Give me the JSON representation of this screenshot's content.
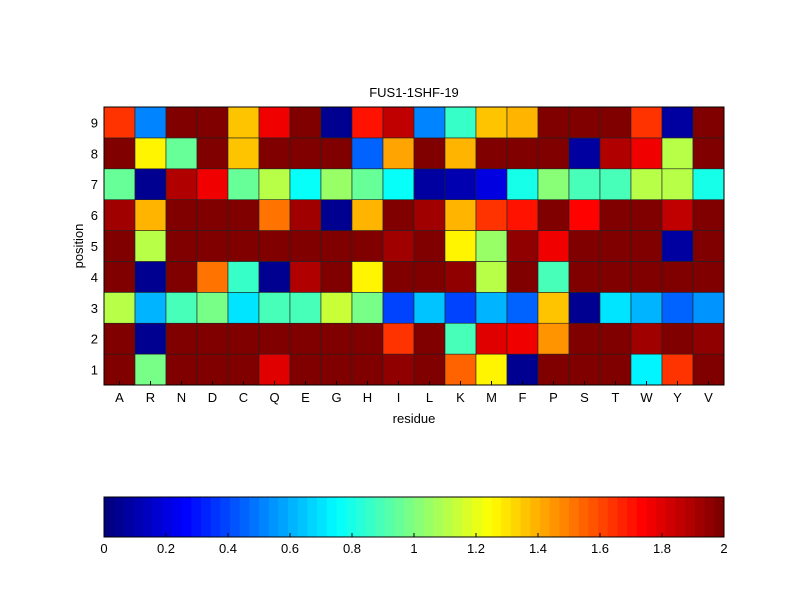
{
  "chart_data": {
    "type": "heatmap",
    "title": "FUS1-1SHF-19",
    "xlabel": "residue",
    "ylabel": "position",
    "x": [
      "A",
      "R",
      "N",
      "D",
      "C",
      "Q",
      "E",
      "G",
      "H",
      "I",
      "L",
      "K",
      "M",
      "F",
      "P",
      "S",
      "T",
      "W",
      "Y",
      "V"
    ],
    "y": [
      "1",
      "2",
      "3",
      "4",
      "5",
      "6",
      "7",
      "8",
      "9"
    ],
    "values": [
      [
        2,
        0.98,
        2,
        2,
        2,
        1.8,
        2,
        2,
        2,
        1.95,
        2,
        1.55,
        1.28,
        0.05,
        2,
        2,
        2,
        0.72,
        1.65,
        2
      ],
      [
        2,
        0.05,
        2,
        2,
        2,
        2,
        2,
        2,
        2,
        1.65,
        2,
        0.88,
        1.8,
        1.75,
        1.45,
        2,
        2,
        1.92,
        2,
        1.95
      ],
      [
        1.1,
        0.6,
        0.88,
        0.98,
        0.7,
        0.88,
        0.9,
        1.15,
        0.98,
        0.4,
        0.65,
        0.4,
        0.62,
        0.45,
        1.35,
        0.05,
        0.7,
        0.6,
        0.45,
        0.55
      ],
      [
        2,
        0.05,
        2,
        1.5,
        0.85,
        0.05,
        1.9,
        2,
        1.25,
        2,
        2,
        1.95,
        1.1,
        2,
        0.9,
        2,
        2,
        2,
        2,
        2
      ],
      [
        2,
        1.1,
        2,
        2,
        2,
        2,
        2,
        2,
        2,
        1.92,
        2,
        1.25,
        1.05,
        1.95,
        1.75,
        2,
        2,
        2,
        0.08,
        2
      ],
      [
        1.92,
        1.4,
        2,
        2,
        2,
        1.5,
        1.92,
        0.05,
        1.38,
        2,
        1.92,
        1.4,
        1.65,
        1.7,
        2,
        1.72,
        2,
        2,
        1.85,
        2
      ],
      [
        0.95,
        0.05,
        1.9,
        1.78,
        0.95,
        1.1,
        0.75,
        1.05,
        0.95,
        0.75,
        0.08,
        0.12,
        0.2,
        0.8,
        1.0,
        0.9,
        0.9,
        1.1,
        1.12,
        0.8
      ],
      [
        2,
        1.25,
        0.95,
        2,
        1.35,
        2,
        2,
        2,
        0.45,
        1.42,
        2,
        1.4,
        2,
        2,
        2,
        0.08,
        1.9,
        1.78,
        1.1,
        2
      ],
      [
        1.65,
        0.5,
        2,
        2,
        1.35,
        1.78,
        2,
        0.05,
        1.7,
        1.85,
        0.5,
        0.85,
        1.35,
        1.38,
        2,
        2,
        2,
        1.65,
        0.08,
        2
      ]
    ],
    "colormap": "jet",
    "clim": [
      0,
      2
    ],
    "colorbar": {
      "location": "bottom",
      "ticks": [
        "0",
        "0.2",
        "0.4",
        "0.6",
        "0.8",
        "1",
        "1.2",
        "1.4",
        "1.6",
        "1.8",
        "2"
      ]
    }
  }
}
